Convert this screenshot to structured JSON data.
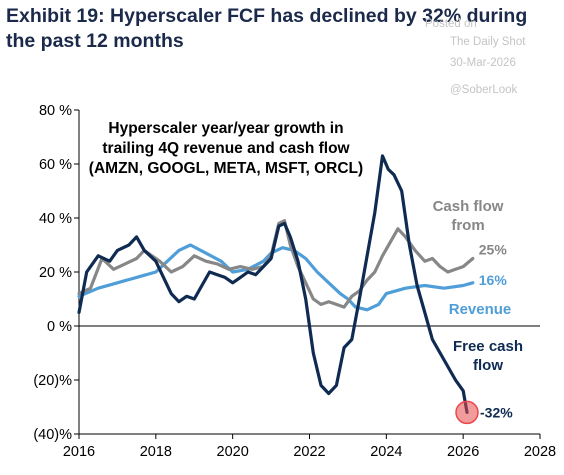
{
  "exhibit": {
    "title": "Exhibit 19: Hyperscaler FCF has declined by 32% during the past 12 months"
  },
  "watermark": {
    "line1": "Posted on",
    "line2": "The Daily Shot",
    "line3": "30-Mar-2026",
    "line4": "@SoberLook"
  },
  "colors": {
    "cash_flow": "#878787",
    "revenue": "#4f9ed8",
    "free_cash_flow": "#0f2b52",
    "marker": "#e8484a"
  },
  "chart_data": {
    "type": "line",
    "title": "Hyperscaler year/year growth in trailing 4Q revenue and cash flow (AMZN, GOOGL, META, MSFT, ORCL)",
    "title_lines": [
      "Hyperscaler year/year growth in",
      "trailing 4Q revenue and cash flow",
      "(AMZN, GOOGL, META, MSFT, ORCL)"
    ],
    "xlabel": "",
    "ylabel": "",
    "xlim": [
      2016,
      2028
    ],
    "ylim": [
      -40,
      80
    ],
    "x_ticks": [
      2016,
      2018,
      2020,
      2022,
      2024,
      2026,
      2028
    ],
    "x_tick_labels": [
      "2016",
      "2018",
      "2020",
      "2022",
      "2024",
      "2026",
      "2028"
    ],
    "y_ticks": [
      -40,
      -20,
      0,
      20,
      40,
      60,
      80
    ],
    "y_tick_labels": [
      "(40)%",
      "(20)%",
      "0 %",
      "20 %",
      "40 %",
      "60 %",
      "80 %"
    ],
    "grid": false,
    "series": [
      {
        "key": "cash_flow",
        "name": "Cash flow from",
        "name_lines": [
          "Cash flow",
          "from"
        ],
        "end_label": "25%",
        "x": [
          2016.0,
          2016.3,
          2016.6,
          2016.9,
          2017.2,
          2017.5,
          2017.7,
          2017.9,
          2018.1,
          2018.4,
          2018.7,
          2019.0,
          2019.3,
          2019.6,
          2019.9,
          2020.2,
          2020.5,
          2020.8,
          2021.0,
          2021.2,
          2021.35,
          2021.5,
          2021.7,
          2021.9,
          2022.1,
          2022.3,
          2022.5,
          2022.7,
          2022.9,
          2023.1,
          2023.3,
          2023.5,
          2023.7,
          2023.9,
          2024.1,
          2024.3,
          2024.5,
          2024.75,
          2025.0,
          2025.2,
          2025.4,
          2025.6,
          2025.8,
          2026.0,
          2026.25
        ],
        "values": [
          12,
          14,
          25,
          21,
          23,
          25,
          28,
          26,
          24,
          20,
          22,
          26,
          24,
          23,
          21,
          22,
          21,
          22,
          26,
          38,
          39,
          30,
          22,
          16,
          10,
          8,
          9,
          8,
          7,
          11,
          13,
          17,
          20,
          26,
          31,
          36,
          33,
          28,
          24,
          25,
          22,
          20,
          21,
          22,
          25
        ]
      },
      {
        "key": "revenue",
        "name": "Revenue",
        "end_label": "16%",
        "x": [
          2016.0,
          2016.5,
          2017.0,
          2017.5,
          2018.0,
          2018.3,
          2018.6,
          2018.9,
          2019.3,
          2019.7,
          2020.0,
          2020.4,
          2020.8,
          2021.0,
          2021.3,
          2021.6,
          2021.9,
          2022.2,
          2022.5,
          2022.8,
          2023.0,
          2023.2,
          2023.5,
          2023.8,
          2024.0,
          2024.5,
          2025.0,
          2025.5,
          2026.0,
          2026.25
        ],
        "values": [
          11,
          14,
          16,
          18,
          20,
          24,
          28,
          30,
          27,
          24,
          20,
          21,
          24,
          27,
          29,
          28,
          25,
          20,
          16,
          12,
          10,
          7,
          6,
          8,
          12,
          14,
          15,
          14,
          15,
          16
        ]
      },
      {
        "key": "free_cash_flow",
        "name": "Free cash flow",
        "name_lines": [
          "Free cash",
          "flow"
        ],
        "end_label": "-32%",
        "x": [
          2016.0,
          2016.2,
          2016.5,
          2016.8,
          2017.0,
          2017.3,
          2017.5,
          2017.7,
          2018.0,
          2018.2,
          2018.4,
          2018.6,
          2018.8,
          2019.0,
          2019.2,
          2019.4,
          2019.6,
          2019.8,
          2020.0,
          2020.2,
          2020.4,
          2020.6,
          2020.8,
          2021.0,
          2021.2,
          2021.35,
          2021.5,
          2021.7,
          2021.9,
          2022.1,
          2022.3,
          2022.5,
          2022.7,
          2022.9,
          2023.1,
          2023.3,
          2023.5,
          2023.7,
          2023.9,
          2024.05,
          2024.2,
          2024.4,
          2024.6,
          2024.8,
          2025.0,
          2025.2,
          2025.4,
          2025.6,
          2025.8,
          2026.0,
          2026.1
        ],
        "values": [
          5,
          20,
          26,
          24,
          28,
          30,
          33,
          28,
          24,
          18,
          12,
          9,
          11,
          10,
          15,
          20,
          19,
          18,
          16,
          18,
          20,
          19,
          22,
          25,
          37,
          38,
          33,
          24,
          10,
          -10,
          -22,
          -25,
          -22,
          -8,
          -5,
          10,
          26,
          42,
          63,
          58,
          56,
          50,
          30,
          15,
          5,
          -5,
          -10,
          -15,
          -20,
          -24,
          -32
        ]
      }
    ],
    "annotations": {
      "marker_x": 2026.1,
      "marker_y": -32
    }
  }
}
